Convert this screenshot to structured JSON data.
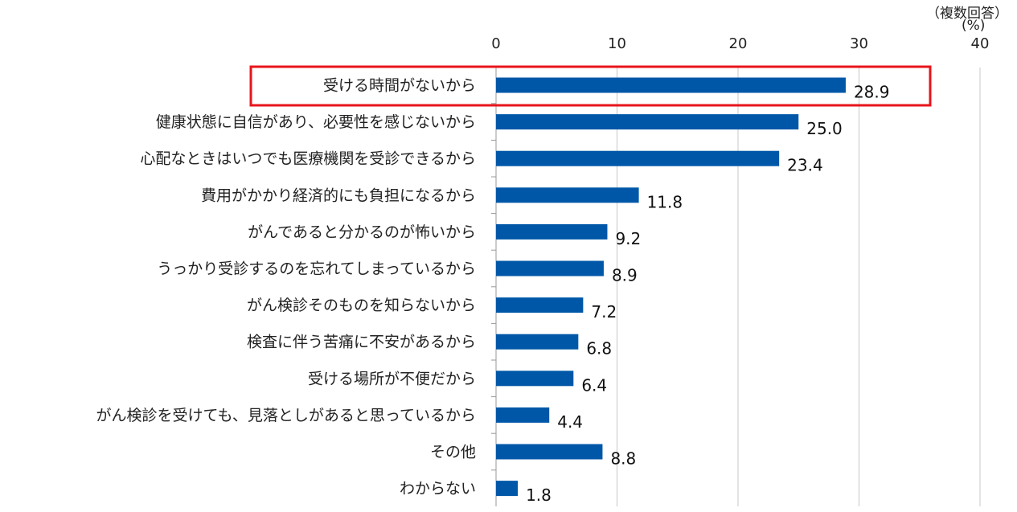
{
  "note": {
    "multiple_answers": "（複数回答）",
    "unit": "(%)"
  },
  "colors": {
    "bar": "#0057a8",
    "highlight": "#e8141b",
    "grid": "#c8c8c8",
    "axis": "#999999",
    "text": "#222222"
  },
  "chart_data": {
    "type": "bar",
    "orientation": "horizontal",
    "categories": [
      "受ける時間がないから",
      "健康状態に自信があり、必要性を感じないから",
      "心配なときはいつでも医療機関を受診できるから",
      "費用がかかり経済的にも負担になるから",
      "がんであると分かるのが怖いから",
      "うっかり受診するのを忘れてしまっているから",
      "がん検診そのものを知らないから",
      "検査に伴う苦痛に不安があるから",
      "受ける場所が不便だから",
      "がん検診を受けても、見落としがあると思っているから",
      "その他",
      "わからない"
    ],
    "values": [
      28.9,
      25.0,
      23.4,
      11.8,
      9.2,
      8.9,
      7.2,
      6.8,
      6.4,
      4.4,
      8.8,
      1.8
    ],
    "value_labels": [
      "28.9",
      "25.0",
      "23.4",
      "11.8",
      "9.2",
      "8.9",
      "7.2",
      "6.8",
      "6.4",
      "4.4",
      "8.8",
      "1.8"
    ],
    "xlim": [
      0,
      40
    ],
    "xticks": [
      0,
      10,
      20,
      30,
      40
    ],
    "xtick_labels": [
      "0",
      "10",
      "20",
      "30",
      "40"
    ],
    "grid": true,
    "highlighted_category_index": 0
  }
}
